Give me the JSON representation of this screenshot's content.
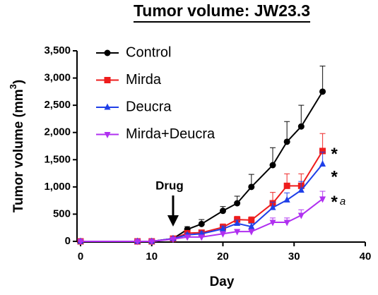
{
  "chart_data": {
    "type": "line",
    "title": "Tumor volume: JW23.3",
    "x_label": "Day",
    "y_label": {
      "text": "Tumor volume (mm",
      "sup": "3",
      "end": ")"
    },
    "x": [
      0,
      8,
      10,
      13,
      15,
      17,
      20,
      22,
      24,
      27,
      29,
      31,
      34
    ],
    "series": [
      {
        "name": "Control",
        "color": "#000000",
        "marker": "circle",
        "values": [
          0,
          0,
          0,
          50,
          220,
          320,
          560,
          700,
          1000,
          1400,
          1830,
          2110,
          2750
        ],
        "errors": [
          0,
          0,
          0,
          20,
          50,
          80,
          80,
          130,
          230,
          320,
          370,
          390,
          470
        ]
      },
      {
        "name": "Mirda",
        "color": "#ee1c1c",
        "marker": "square",
        "values": [
          0,
          0,
          0,
          50,
          150,
          160,
          260,
          400,
          390,
          700,
          1020,
          1020,
          1660
        ],
        "errors": [
          0,
          0,
          0,
          10,
          30,
          40,
          60,
          60,
          60,
          200,
          220,
          220,
          320
        ]
      },
      {
        "name": "Deucra",
        "color": "#1f3fe8",
        "marker": "triangle-up",
        "values": [
          0,
          0,
          0,
          50,
          120,
          140,
          230,
          330,
          270,
          620,
          760,
          940,
          1420
        ],
        "errors": [
          0,
          0,
          0,
          10,
          30,
          40,
          50,
          60,
          60,
          100,
          130,
          160,
          220
        ]
      },
      {
        "name": "Mirda+Deucra",
        "color": "#b030f0",
        "marker": "triangle-down",
        "values": [
          0,
          0,
          0,
          40,
          80,
          80,
          140,
          180,
          180,
          350,
          350,
          480,
          780
        ],
        "errors": [
          0,
          0,
          0,
          10,
          20,
          30,
          40,
          40,
          40,
          80,
          80,
          100,
          140
        ]
      }
    ],
    "annotations": [
      {
        "series": 1,
        "text": "*"
      },
      {
        "series": 2,
        "text": "*"
      },
      {
        "series": 3,
        "text": "*",
        "note": "a"
      }
    ],
    "drug": {
      "label": "Drug",
      "day": 13
    },
    "xlim": [
      0,
      40
    ],
    "xticks": [
      0,
      10,
      20,
      30,
      40
    ],
    "ylim": [
      0,
      3500
    ],
    "yticks": [
      0,
      500,
      {
        "value": 1000,
        "label": "1,000"
      },
      {
        "value": 1500,
        "label": "1,500"
      },
      {
        "value": 2000,
        "label": "2,000"
      },
      {
        "value": 2500,
        "label": "2,500"
      },
      {
        "value": 3000,
        "label": "3,000"
      },
      {
        "value": 3500,
        "label": "3,500"
      }
    ],
    "legend": "upper left",
    "grid": false
  }
}
